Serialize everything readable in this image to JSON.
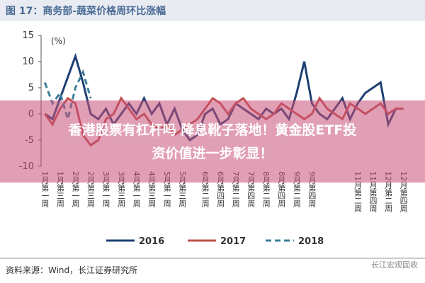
{
  "chart_data": {
    "type": "line",
    "title": "图 17：商务部-蔬菜价格周环比涨幅",
    "y_label": "(%)",
    "categories": [
      "1月第一周",
      null,
      "1月第三周",
      null,
      "2月第一周",
      null,
      "2月第三周",
      null,
      "3月第一周",
      null,
      "3月第三周",
      null,
      "4月第一周",
      null,
      "4月第三周",
      null,
      "5月第一周",
      null,
      "5月第三周",
      null,
      null,
      "6月第二周",
      null,
      "6月第四周",
      null,
      "7月第二周",
      null,
      "7月第四周",
      null,
      "8月第二周",
      null,
      "8月第四周",
      null,
      "9月第二周",
      null,
      "9月第四周",
      null,
      null,
      null,
      null,
      null,
      "11月第二周",
      null,
      "11月第四周",
      null,
      "12月第二周",
      null,
      "12月第四周"
    ],
    "series": [
      {
        "name": "2016",
        "color": "#1f3f74",
        "line_style": "solid",
        "values": [
          0,
          -1,
          3,
          7,
          11,
          6,
          0,
          -1,
          1,
          -2,
          0,
          2,
          0,
          3,
          0,
          2,
          -2,
          1,
          -3,
          -5,
          -4,
          0,
          1,
          -2,
          -1,
          2,
          1,
          0,
          -1,
          1,
          0,
          1,
          -1,
          4,
          10,
          2,
          0,
          -1,
          1,
          3,
          -1,
          2,
          4,
          5,
          6,
          -2,
          1,
          1
        ]
      },
      {
        "name": "2017",
        "color": "#c0504d",
        "line_style": "solid",
        "values": [
          0,
          -2,
          1,
          3,
          2,
          -4,
          -6,
          -5,
          -1,
          0,
          3,
          1,
          -1,
          0,
          -2,
          -3,
          -2,
          -4,
          -3,
          -2,
          -1,
          1,
          3,
          2,
          0,
          2,
          3,
          1,
          0,
          -1,
          0,
          2,
          1,
          0,
          -1,
          0,
          3,
          1,
          0,
          -1,
          2,
          1,
          0,
          1,
          2,
          0,
          1,
          1
        ]
      },
      {
        "name": "2018",
        "color": "#3d7f99",
        "line_style": "dashed",
        "values": [
          6,
          2,
          4,
          -1,
          5,
          8,
          3,
          null,
          null,
          null,
          null,
          null,
          null,
          null,
          null,
          null,
          null,
          null,
          null,
          null,
          null,
          null,
          null,
          null,
          null,
          null,
          null,
          null,
          null,
          null,
          null,
          null,
          null,
          null,
          null,
          null,
          null,
          null,
          null,
          null,
          null,
          null,
          null,
          null,
          null,
          null,
          null,
          null
        ]
      }
    ],
    "ylim": [
      -10,
      15
    ],
    "yticks": [
      -10,
      -5,
      0,
      5,
      10,
      15
    ],
    "grid": false
  },
  "overlay": {
    "lines": [
      "香港股票有杠杆吗 降息靴子落地！黄金股ETF投",
      "资价值进一步彰显！"
    ]
  },
  "source": "资料来源：Wind，长江证券研究所",
  "watermark": "长江宏观固收"
}
